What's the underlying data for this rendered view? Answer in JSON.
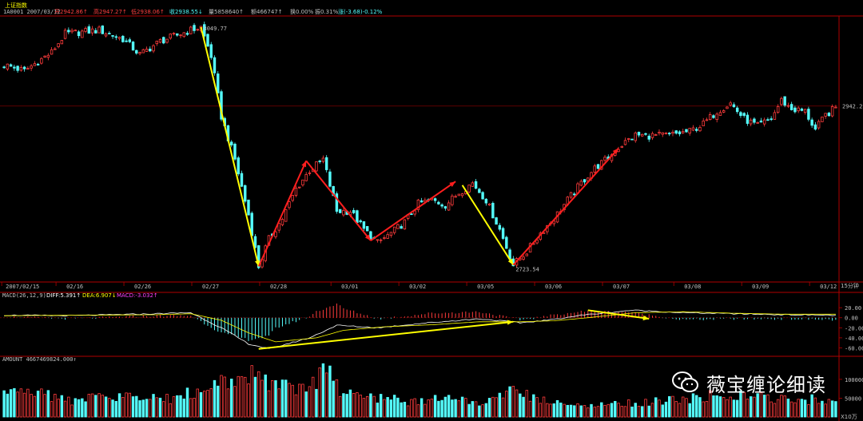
{
  "header": {
    "index_name": "上证指数",
    "code_date": "1A0001 2007/03/12",
    "open": "开2942.86↑",
    "high": "高2947.27↑",
    "low": "低2938.06↑",
    "close": "收2938.55↓",
    "volume": "量5858640↑",
    "amount": "额466747↑",
    "turnover": "换0.00%",
    "amplitude": "振0.31%",
    "change": "涨(-3.68)-0.12%"
  },
  "price": {
    "high_label": "3049.77",
    "low_label": "2723.54",
    "right_label": "2942.2",
    "right_label_value": 2942.2,
    "ylim": [
      2705,
      3062
    ]
  },
  "date_labels": [
    "2007/02/15",
    "02/16",
    "02/26",
    "02/27",
    "02/28",
    "03/01",
    "03/02",
    "03/05",
    "03/06",
    "03/07",
    "03/08",
    "03/09",
    "03/12"
  ],
  "period_label": "15分钟",
  "macd": {
    "label": "MACD(26,12,9)",
    "diff": "DIFF:5.391↑",
    "dea": "DEA:6.907↓",
    "macd": "MACD:-3.032↑",
    "ticks": [
      "20.00",
      "0.00",
      "-20.00",
      "-40.00",
      "-60.00"
    ],
    "tick_values": [
      20,
      0,
      -20,
      -40,
      -60
    ],
    "ylim": [
      -72,
      33
    ]
  },
  "amount_panel": {
    "label": "AMOUNT 4667469824.000↑",
    "ticks": [
      "100000",
      "50000"
    ],
    "tick_values": [
      100000,
      50000
    ],
    "unit": "X10万",
    "ylim": [
      0,
      140000
    ]
  },
  "watermark": {
    "text": "薇宝缠论细读"
  },
  "colors": {
    "up": "#ff3c3c",
    "down": "#54fcfc",
    "yellow": "#ffff00",
    "red_arrow": "#ff1e1e",
    "white": "#ffffff",
    "grid": "#7a0000",
    "axis": "#b00000",
    "header_label": "#ffff00"
  },
  "chart_data": {
    "type": "candlestick",
    "timeframe": "15分钟",
    "close_anchors": [
      [
        0,
        2998
      ],
      [
        6,
        2990
      ],
      [
        14,
        3015
      ],
      [
        18,
        3040
      ],
      [
        28,
        3045
      ],
      [
        35,
        3033
      ],
      [
        40,
        3012
      ],
      [
        46,
        3030
      ],
      [
        55,
        3045
      ],
      [
        58,
        3049
      ],
      [
        61,
        3010
      ],
      [
        64,
        2928
      ],
      [
        68,
        2870
      ],
      [
        72,
        2795
      ],
      [
        75,
        2725
      ],
      [
        78,
        2762
      ],
      [
        82,
        2790
      ],
      [
        86,
        2830
      ],
      [
        90,
        2855
      ],
      [
        94,
        2870
      ],
      [
        98,
        2800
      ],
      [
        102,
        2800
      ],
      [
        106,
        2775
      ],
      [
        110,
        2757
      ],
      [
        114,
        2770
      ],
      [
        118,
        2785
      ],
      [
        122,
        2810
      ],
      [
        126,
        2815
      ],
      [
        130,
        2808
      ],
      [
        134,
        2825
      ],
      [
        138,
        2838
      ],
      [
        142,
        2815
      ],
      [
        146,
        2775
      ],
      [
        150,
        2727
      ],
      [
        154,
        2745
      ],
      [
        158,
        2770
      ],
      [
        162,
        2790
      ],
      [
        166,
        2815
      ],
      [
        170,
        2838
      ],
      [
        174,
        2858
      ],
      [
        178,
        2872
      ],
      [
        182,
        2890
      ],
      [
        186,
        2903
      ],
      [
        190,
        2902
      ],
      [
        196,
        2903
      ],
      [
        202,
        2908
      ],
      [
        206,
        2918
      ],
      [
        210,
        2935
      ],
      [
        214,
        2946
      ],
      [
        218,
        2925
      ],
      [
        222,
        2915
      ],
      [
        226,
        2925
      ],
      [
        229,
        2950
      ],
      [
        232,
        2938
      ],
      [
        236,
        2935
      ],
      [
        239,
        2910
      ],
      [
        242,
        2930
      ],
      [
        245,
        2940
      ]
    ],
    "macd_diff_anchors": [
      [
        0,
        5
      ],
      [
        20,
        4
      ],
      [
        45,
        8
      ],
      [
        55,
        10
      ],
      [
        64,
        -20
      ],
      [
        72,
        -52
      ],
      [
        78,
        -62
      ],
      [
        90,
        -40
      ],
      [
        98,
        -15
      ],
      [
        110,
        -20
      ],
      [
        125,
        -10
      ],
      [
        140,
        -2
      ],
      [
        152,
        -10
      ],
      [
        160,
        -5
      ],
      [
        170,
        5
      ],
      [
        185,
        15
      ],
      [
        200,
        10
      ],
      [
        215,
        8
      ],
      [
        230,
        6
      ],
      [
        245,
        5
      ]
    ],
    "macd_dea_anchors": [
      [
        0,
        4
      ],
      [
        20,
        5
      ],
      [
        45,
        6
      ],
      [
        55,
        8
      ],
      [
        64,
        -5
      ],
      [
        72,
        -30
      ],
      [
        80,
        -48
      ],
      [
        92,
        -40
      ],
      [
        100,
        -25
      ],
      [
        112,
        -18
      ],
      [
        126,
        -14
      ],
      [
        140,
        -8
      ],
      [
        152,
        -8
      ],
      [
        162,
        -6
      ],
      [
        172,
        0
      ],
      [
        186,
        10
      ],
      [
        200,
        12
      ],
      [
        215,
        9
      ],
      [
        230,
        7
      ],
      [
        245,
        7
      ]
    ],
    "amount_anchors": [
      [
        0,
        55000
      ],
      [
        10,
        70000
      ],
      [
        20,
        40000
      ],
      [
        30,
        60000
      ],
      [
        40,
        45000
      ],
      [
        50,
        50000
      ],
      [
        58,
        75000
      ],
      [
        64,
        95000
      ],
      [
        70,
        110000
      ],
      [
        75,
        120000
      ],
      [
        80,
        80000
      ],
      [
        90,
        70000
      ],
      [
        95,
        130000
      ],
      [
        100,
        60000
      ],
      [
        110,
        50000
      ],
      [
        120,
        40000
      ],
      [
        130,
        50000
      ],
      [
        140,
        35000
      ],
      [
        148,
        70000
      ],
      [
        152,
        60000
      ],
      [
        160,
        40000
      ],
      [
        170,
        30000
      ],
      [
        180,
        35000
      ],
      [
        190,
        40000
      ],
      [
        200,
        45000
      ],
      [
        210,
        60000
      ],
      [
        220,
        55000
      ],
      [
        230,
        50000
      ],
      [
        240,
        45000
      ],
      [
        245,
        40000
      ]
    ],
    "annotations": [
      {
        "color": "yellow",
        "from": [
          58,
          3049
        ],
        "to": [
          75,
          2725
        ]
      },
      {
        "color": "red",
        "from": [
          75,
          2725
        ],
        "to": [
          89,
          2868
        ]
      },
      {
        "color": "red",
        "from": [
          89,
          2868
        ],
        "to": [
          108,
          2760
        ]
      },
      {
        "color": "red",
        "from": [
          108,
          2760
        ],
        "to": [
          133,
          2840
        ]
      },
      {
        "color": "yellow",
        "from": [
          135,
          2835
        ],
        "to": [
          150,
          2727
        ]
      },
      {
        "color": "red",
        "from": [
          150,
          2727
        ],
        "to": [
          181,
          2885
        ]
      },
      {
        "color": "yellow",
        "from": [
          75,
          -62
        ],
        "to": [
          150,
          -8
        ],
        "panel": "macd"
      },
      {
        "color": "yellow",
        "from": [
          172,
          15
        ],
        "to": [
          190,
          -2
        ],
        "panel": "macd"
      }
    ]
  }
}
